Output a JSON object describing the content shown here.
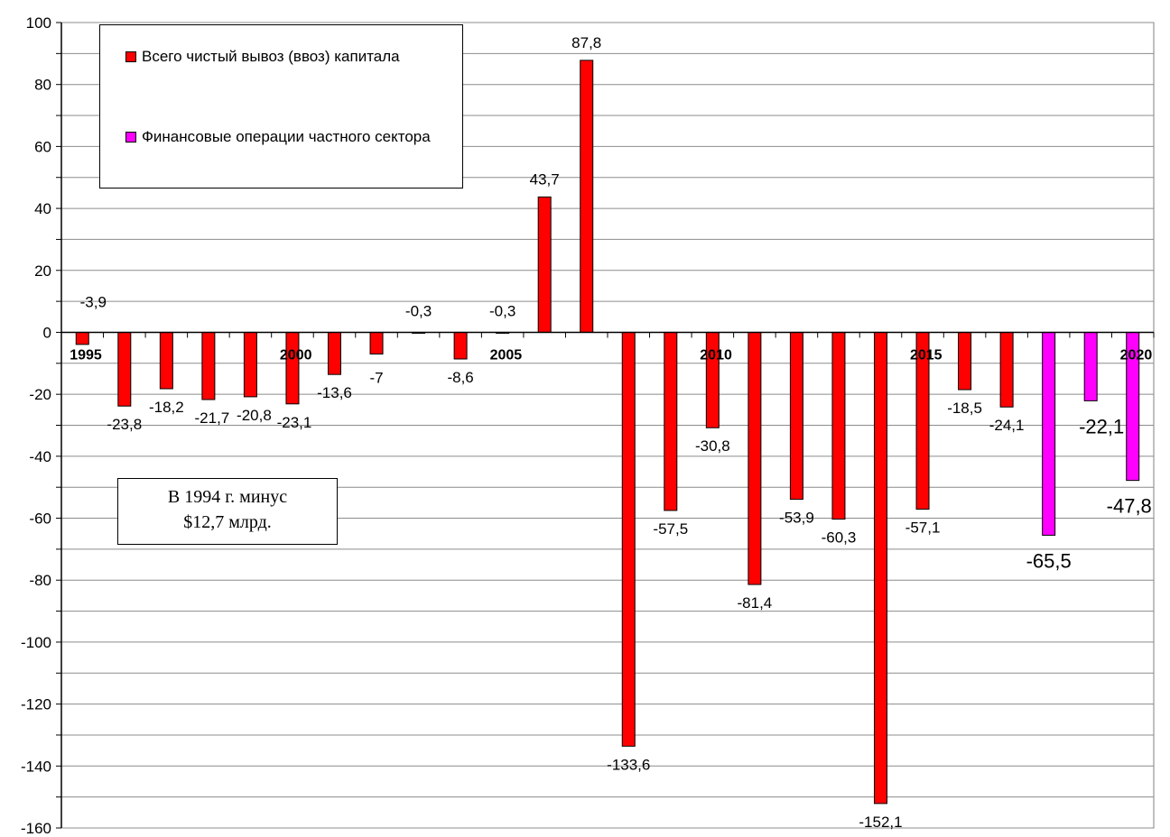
{
  "chart_data": {
    "type": "bar",
    "title": "",
    "xlabel": "",
    "ylabel": "",
    "ylim": [
      -160,
      100
    ],
    "yticks": [
      100,
      80,
      60,
      40,
      20,
      0,
      -20,
      -40,
      -60,
      -80,
      -100,
      -120,
      -140,
      -160
    ],
    "x": [
      1995,
      1996,
      1997,
      1998,
      1999,
      2000,
      2001,
      2002,
      2003,
      2004,
      2005,
      2006,
      2007,
      2008,
      2009,
      2010,
      2011,
      2012,
      2013,
      2014,
      2015,
      2016,
      2017,
      2018,
      2019,
      2020
    ],
    "xtick_labels": [
      "1995",
      "2000",
      "2005",
      "2010",
      "2015",
      "2020"
    ],
    "grid": true,
    "legend_position": "top-left",
    "series": [
      {
        "name": "Всего чистый вывоз (ввоз) капитала",
        "color": "#ff0000",
        "x": [
          1995,
          1996,
          1997,
          1998,
          1999,
          2000,
          2001,
          2002,
          2003,
          2004,
          2005,
          2006,
          2007,
          2008,
          2009,
          2010,
          2011,
          2012,
          2013,
          2014,
          2015,
          2016,
          2017
        ],
        "values": [
          -3.9,
          -23.8,
          -18.2,
          -21.7,
          -20.8,
          -23.1,
          -13.6,
          -7,
          -0.3,
          -8.6,
          -0.3,
          43.7,
          87.8,
          -133.6,
          -57.5,
          -30.8,
          -81.4,
          -53.9,
          -60.3,
          -152.1,
          -57.1,
          -18.5,
          -24.1
        ],
        "labels": [
          "-3,9",
          "-23,8",
          "-18,2",
          "-21,7",
          "-20,8",
          "-23,1",
          "-13,6",
          "-7",
          "-0,3",
          "-8,6",
          "-0,3",
          "43,7",
          "87,8",
          "-133,6",
          "-57,5",
          "-30,8",
          "-81,4",
          "-53,9",
          "-60,3",
          "-152,1",
          "-57,1",
          "-18,5",
          "-24,1"
        ]
      },
      {
        "name": "Финансовые операции частного сектора",
        "color": "#ff00ff",
        "x": [
          2018,
          2019,
          2020
        ],
        "values": [
          -65.5,
          -22.1,
          -47.8
        ],
        "labels": [
          "-65,5",
          "-22,1",
          "-47,8"
        ]
      }
    ],
    "annotation": {
      "line1": "В 1994 г. минус",
      "line2": "$12,7 млрд."
    }
  }
}
